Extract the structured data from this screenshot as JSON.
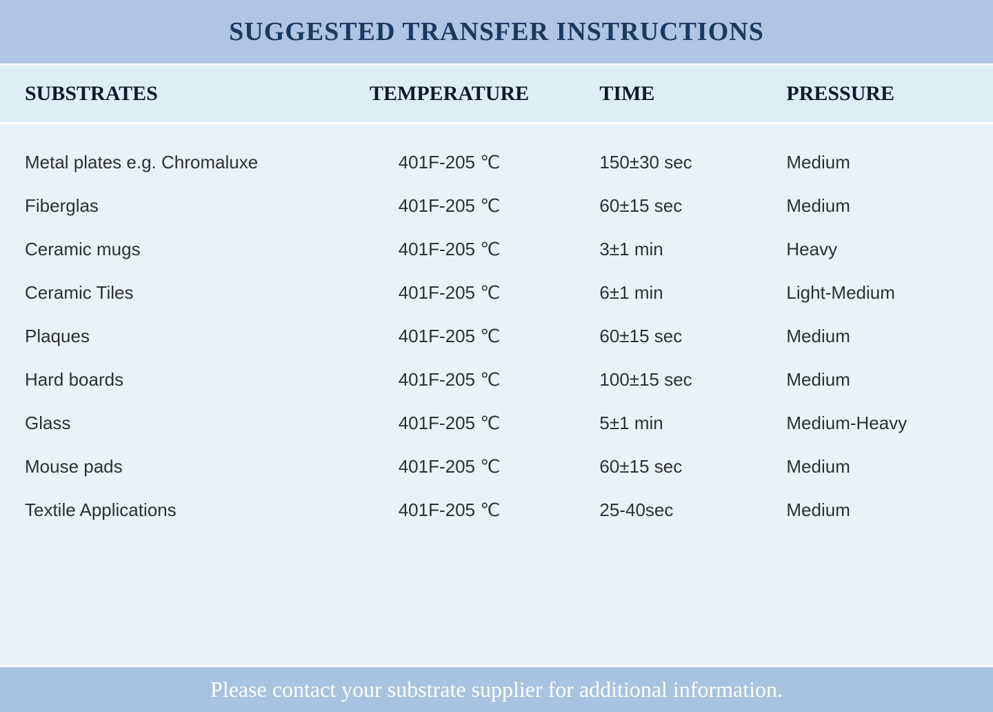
{
  "title": "SUGGESTED TRANSFER INSTRUCTIONS",
  "columns": {
    "substrates": "SUBSTRATES",
    "temperature": "TEMPERATURE",
    "time": "TIME",
    "pressure": "PRESSURE"
  },
  "rows": [
    {
      "substrate": "Metal plates e.g. Chromaluxe",
      "temperature": "401F-205 ℃",
      "time": "150±30 sec",
      "pressure": "Medium"
    },
    {
      "substrate": "Fiberglas",
      "temperature": "401F-205 ℃",
      "time": "60±15 sec",
      "pressure": "Medium"
    },
    {
      "substrate": "Ceramic mugs",
      "temperature": "401F-205 ℃",
      "time": "3±1 min",
      "pressure": "Heavy"
    },
    {
      "substrate": "Ceramic Tiles",
      "temperature": "401F-205 ℃",
      "time": "6±1 min",
      "pressure": "Light-Medium"
    },
    {
      "substrate": "Plaques",
      "temperature": "401F-205 ℃",
      "time": "60±15 sec",
      "pressure": "Medium"
    },
    {
      "substrate": "Hard boards",
      "temperature": "401F-205 ℃",
      "time": "100±15 sec",
      "pressure": "Medium"
    },
    {
      "substrate": "Glass",
      "temperature": "401F-205 ℃",
      "time": "5±1 min",
      "pressure": "Medium-Heavy"
    },
    {
      "substrate": "Mouse pads",
      "temperature": "401F-205 ℃",
      "time": "60±15 sec",
      "pressure": "Medium"
    },
    {
      "substrate": "Textile Applications",
      "temperature": "401F-205 ℃",
      "time": "25-40sec",
      "pressure": "Medium"
    }
  ],
  "footer": "Please contact your substrate supplier for additional information.",
  "styling": {
    "title_bg": "#b0c4e4",
    "title_color": "#1a3960",
    "title_fontsize": 38,
    "header_bg": "#dceff6",
    "header_color": "#0f1a2a",
    "header_fontsize": 30,
    "body_bg": "#e9f3f7",
    "body_color": "#2f2f2f",
    "body_fontsize": 26,
    "footer_bg": "#a7c3df",
    "footer_color": "#ffffff",
    "footer_fontsize": 32,
    "divider_color": "#ffffff",
    "column_widths_pct": [
      32,
      26,
      22,
      20
    ],
    "font_title": "Georgia serif",
    "font_body": "Arial sans-serif"
  }
}
